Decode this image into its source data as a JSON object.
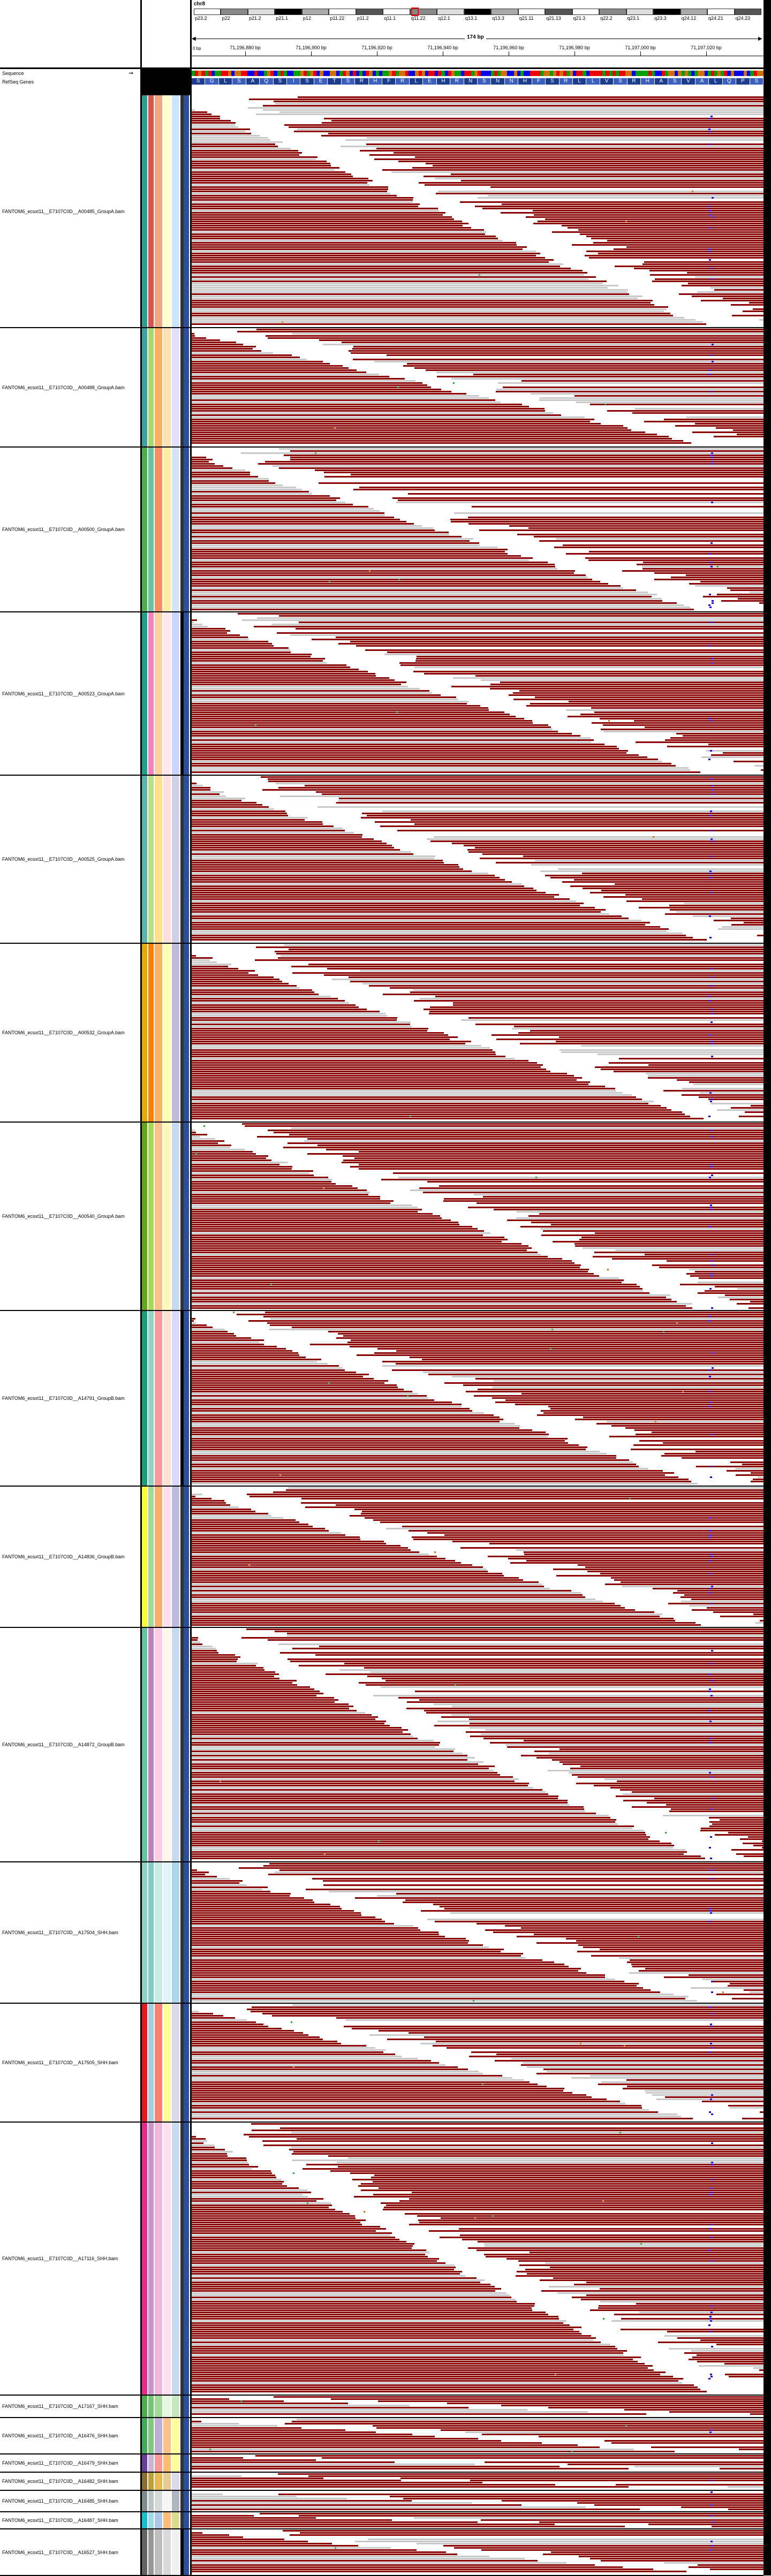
{
  "header": {
    "chromosome": "chr8",
    "cytobands": [
      "p23.2",
      "p22",
      "p21.2",
      "p21.1",
      "p12",
      "p11.22",
      "p11.2",
      "q11.1",
      "q11.22",
      "q12.1",
      "q13.1",
      "q13.3",
      "q21.11",
      "q21.13",
      "q21.3",
      "q22.2",
      "q23.1",
      "q23.3",
      "q24.12",
      "q24.21",
      "q24.23"
    ],
    "span_label": "174 bp",
    "ruler_ticks": [
      "71,196,880 bp",
      "71,196,900 bp",
      "71,196,920 bp",
      "71,196,940 bp",
      "71,196,960 bp",
      "71,196,980 bp",
      "71,197,000 bp",
      "71,197,020 bp"
    ],
    "first_tick": "0 bp",
    "amino_acids": [
      "S",
      "G",
      "L",
      "S",
      "A",
      "Q",
      "S",
      "I",
      "S",
      "E",
      "T",
      "S",
      "R",
      "H",
      "F",
      "R",
      "L",
      "E",
      "H",
      "R",
      "N",
      "S",
      "N",
      "N",
      "H",
      "F",
      "S",
      "R",
      "L",
      "L",
      "V",
      "S",
      "R",
      "H",
      "A",
      "S",
      "V",
      "A",
      "L",
      "Q",
      "P",
      "S"
    ]
  },
  "tracks": {
    "sequence_label": "Sequence",
    "refseq_label": "RefSeq Genes"
  },
  "samples": [
    {
      "label": "FANTOM6_ecsxt11__E7107C0D__A00485_GroupA.bam"
    },
    {
      "label": "FANTOM6_ecsxt11__E7107C0D__A00488_GroupA.bam"
    },
    {
      "label": "FANTOM6_ecsxt11__E7107C0D__A00500_GroupA.bam"
    },
    {
      "label": "FANTOM6_ecsxt11__E7107C0D__A00523_GroupA.bam"
    },
    {
      "label": "FANTOM6_ecsxt11__E7107C0D__A00525_GroupA.bam"
    },
    {
      "label": "FANTOM6_ecsxt11__E7107C0D__A00532_GroupA.bam"
    },
    {
      "label": "FANTOM6_ecsxt11__E7107C0D__A00540_GroupA.bam"
    },
    {
      "label": "FANTOM6_ecsxt11__E7107C0D__A14791_GroupB.bam"
    },
    {
      "label": "FANTOM6_ecsxt11__E7107C0D__A14836_GroupB.bam"
    },
    {
      "label": "FANTOM6_ecsxt11__E7107C0D__A14872_GroupB.bam"
    },
    {
      "label": "FANTOM6_ecsxt11__E7107C0D__A17504_SHH.bam"
    },
    {
      "label": "FANTOM6_ecsxt11__E7107C0D__A17505_SHH.bam"
    },
    {
      "label": "FANTOM6_ecsxt11__E7107C0D__A17116_SHH.bam"
    },
    {
      "label": "FANTOM6_ecsxt11__E7107C0D__A17167_SHH.bam"
    },
    {
      "label": "FANTOM6_ecsxt11__E7107C0D__A16476_SHH.bam"
    },
    {
      "label": "FANTOM6_ecsxt11__E7107C0D__A16479_SHH.bam"
    },
    {
      "label": "FANTOM6_ecsxt11__E7107C0D__A16482_SHH.bam"
    },
    {
      "label": "FANTOM6_ecsxt11__E7107C0D__A16485_SHH.bam"
    },
    {
      "label": "FANTOM6_ecsxt11__E7107C0D__A16487_SHH.bam"
    },
    {
      "label": "FANTOM6_ecsxt11__E7107C0D__A16527_SHH.bam"
    }
  ],
  "colors": {
    "read": "#8b0000",
    "read_light": "#c8c8c8",
    "mismatch": "#2200ee",
    "separator": "#000000"
  },
  "icons": {
    "collapse_arrow": "arrow-right-icon"
  }
}
